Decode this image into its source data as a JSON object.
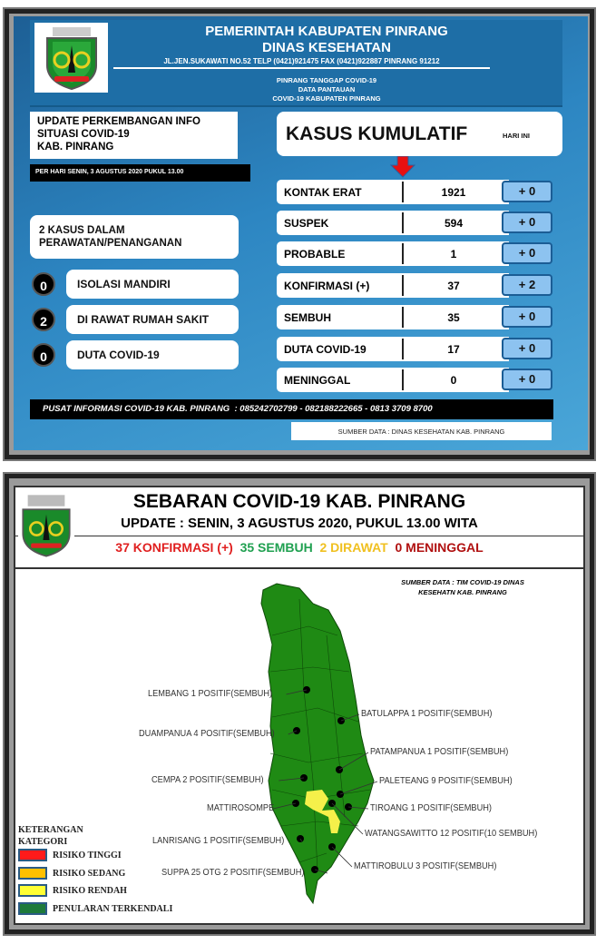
{
  "top_panel": {
    "header": {
      "line1": "PEMERINTAH KABUPATEN PINRANG",
      "line2": "DINAS KESEHATAN",
      "address": "JL.JEN.SUKAWATI NO.52 TELP (0421)921475 FAX (0421)922887 PINRANG 91212",
      "sub1": "PINRANG TANGGAP COVID-19",
      "sub2": "DATA PANTAUAN",
      "sub3": "COVID-19 KABUPATEN PINRANG"
    },
    "update_box": {
      "line1": "UPDATE PERKEMBANGAN INFO",
      "line2": "SITUASI COVID-19",
      "line3": "KAB. PINRANG"
    },
    "date_bar": "PER HARI SENIN, 3 AGUSTUS 2020 PUKUL 13.00",
    "care_box": {
      "line1": "2 KASUS DALAM",
      "line2": "PERAWATAN/PENANGANAN"
    },
    "care_items": [
      {
        "count": "0",
        "label": "ISOLASI MANDIRI"
      },
      {
        "count": "2",
        "label": "DI RAWAT RUMAH SAKIT"
      },
      {
        "count": "0",
        "label": "DUTA COVID-19"
      }
    ],
    "cumulative": {
      "title": "KASUS KUMULATIF",
      "today": "HARI INI"
    },
    "rows": [
      {
        "label": "KONTAK ERAT",
        "value": "1921",
        "delta": "+ 0"
      },
      {
        "label": "SUSPEK",
        "value": "594",
        "delta": "+ 0"
      },
      {
        "label": "PROBABLE",
        "value": "1",
        "delta": "+ 0"
      },
      {
        "label": "KONFIRMASI (+)",
        "value": "37",
        "delta": "+ 2"
      },
      {
        "label": "SEMBUH",
        "value": "35",
        "delta": "+ 0"
      },
      {
        "label": "DUTA COVID-19",
        "value": "17",
        "delta": "+ 0"
      },
      {
        "label": "MENINGGAL",
        "value": "0",
        "delta": "+ 0"
      }
    ],
    "info_bar": "PUSAT INFORMASI COVID-19 KAB. PINRANG  : 085242702799 - 082188222665 - 0813 3709 8700",
    "source": "SUMBER DATA  : DINAS KESEHATAN  KAB. PINRANG"
  },
  "bottom_panel": {
    "title": "SEBARAN COVID-19 KAB. PINRANG",
    "update": "UPDATE : SENIN, 3 AGUSTUS 2020, PUKUL 13.00 WITA",
    "stats": [
      {
        "text": "37 KONFIRMASI (+)",
        "color": "#e02020"
      },
      {
        "text": "35 SEMBUH",
        "color": "#1fa050"
      },
      {
        "text": "2 DIRAWAT",
        "color": "#f0c020"
      },
      {
        "text": "0 MENINGGAL",
        "color": "#b01010"
      }
    ],
    "source_line1": "SUMBER DATA : TIM COVID-19  DINAS",
    "source_line2": "KESEHATN KAB. PINRANG",
    "map_labels": [
      "LEMBANG 1 POSITIF(SEMBUH)",
      "BATULAPPA 1 POSITIF(SEMBUH)",
      "DUAMPANUA 4 POSITIF(SEMBUH)",
      "PATAMPANUA 1 POSITIF(SEMBUH)",
      "CEMPA 2 POSITIF(SEMBUH)",
      "PALETEANG 9 POSITIF(SEMBUH)",
      "MATTIROSOMPE",
      "TIROANG 1 POSITIF(SEMBUH)",
      "WATANGSAWITTO 12 POSITIF(10 SEMBUH)",
      "LANRISANG 1 POSITIF(SEMBUH)",
      "MATTIROBULU 3 POSITIF(SEMBUH)",
      "SUPPA 25 OTG 2 POSITIF(SEMBUH)"
    ],
    "legend": {
      "title1": "KETERANGAN",
      "title2": "KATEGORI",
      "items": [
        {
          "label": "RISIKO TINGGI",
          "color": "#ff1a1a"
        },
        {
          "label": "RISIKO SEDANG",
          "color": "#ffc000"
        },
        {
          "label": "RISIKO RENDAH",
          "color": "#ffff33"
        },
        {
          "label": "PENULARAN TERKENDALI",
          "color": "#1e7a3a"
        }
      ]
    },
    "map_colors": {
      "land": "#1f8a14",
      "highlight": "#f5f04a"
    }
  }
}
